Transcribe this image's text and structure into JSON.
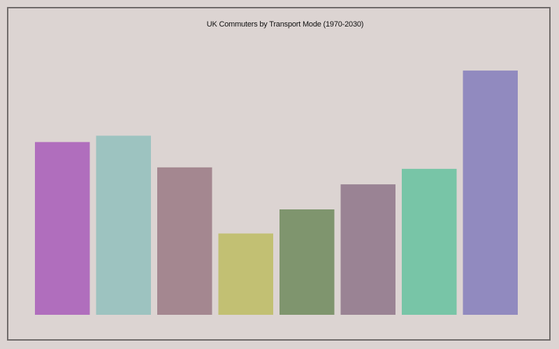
{
  "chart_data": {
    "type": "bar",
    "title": "UK Commuters by Transport Mode (1970-2030)",
    "xlabel": "",
    "ylabel": "",
    "grid": false,
    "legend": "none",
    "ylim": [
      0,
      100
    ],
    "categories": [
      "",
      "",
      "",
      "",
      "",
      "",
      "",
      ""
    ],
    "values": [
      70.3,
      72.9,
      60.0,
      33.1,
      42.9,
      53.1,
      59.4,
      99.4
    ],
    "colors": [
      "#b06ebd",
      "#9dc3c0",
      "#a48790",
      "#c2c073",
      "#7f956e",
      "#9a8394",
      "#78c5a7",
      "#918abf"
    ]
  },
  "colors": {
    "background": "#dcd4d2",
    "frame": "#6f6a69"
  }
}
